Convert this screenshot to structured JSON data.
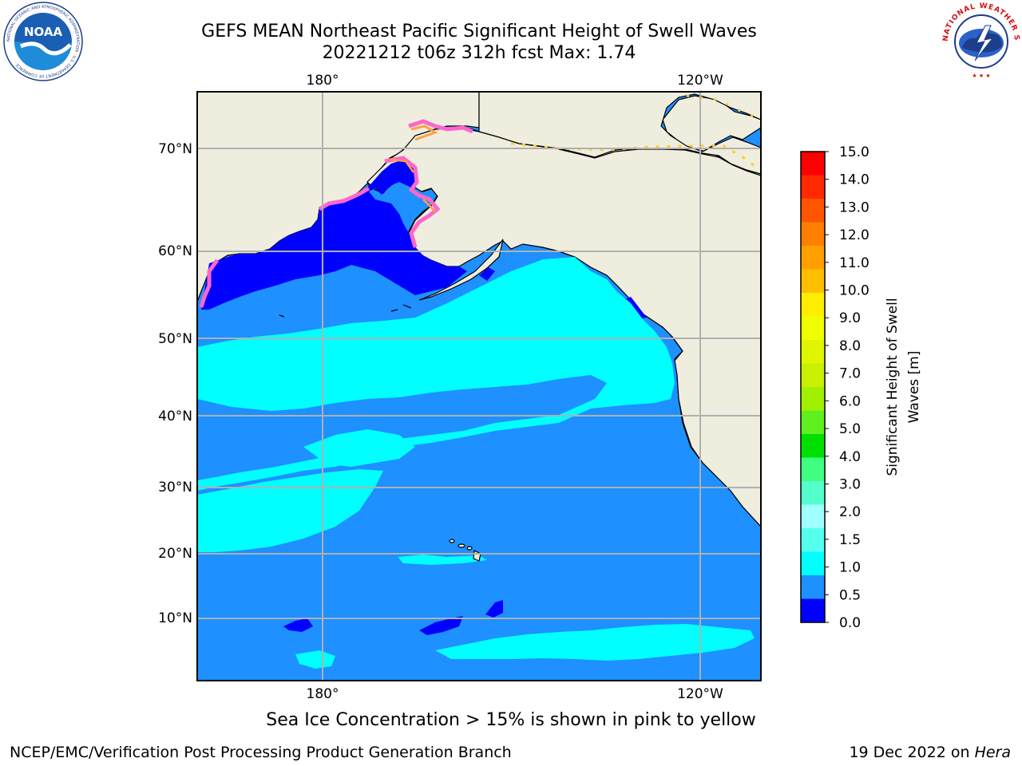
{
  "title_line1": "GEFS MEAN Northeast Pacific Significant Height of Swell Waves",
  "title_line2": "20221212 t06z 312h fcst   Max: 1.74",
  "caption": "Sea Ice Concentration > 15% is shown in pink to yellow",
  "footer_left": "NCEP/EMC/Verification Post Processing Product Generation Branch",
  "footer_right_date": "19 Dec 2022 on ",
  "footer_right_machine": "Hera",
  "logos": {
    "noaa_text": "NOAA",
    "noaa_ring": "NATIONAL OCEANIC AND ATMOSPHERIC ADMINISTRATION · U.S. DEPARTMENT OF COMMERCE ·",
    "nws_ring": "NATIONAL WEATHER SERVICE"
  },
  "map": {
    "lon_labels_top": [
      "180°",
      "120°W"
    ],
    "lon_labels_bottom": [
      "180°",
      "120°W"
    ],
    "lat_labels": [
      "70°N",
      "60°N",
      "50°N",
      "40°N",
      "30°N",
      "20°N",
      "10°N"
    ],
    "colors": {
      "land": "#efedde",
      "ocean_0_5_1_0": "#1e90ff",
      "ocean_1_0_1_5": "#00ffff",
      "ocean_1_5_2_0": "#55ffee",
      "ocean_0_0_0_5": "#0000ff",
      "grid": "#b0b0b0",
      "ice_pink": "#ff66cc",
      "ice_orange": "#ffa040",
      "ice_yellow": "#ffd030"
    }
  },
  "colorbar": {
    "label_line1": "Significant Height of Swell",
    "label_line2": "Waves [m]",
    "ticks": [
      "15.0",
      "14.0",
      "13.0",
      "12.0",
      "11.0",
      "10.0",
      "9.0",
      "8.0",
      "7.0",
      "6.0",
      "5.0",
      "4.0",
      "3.0",
      "2.0",
      "1.5",
      "1.0",
      "0.5",
      "0.0"
    ],
    "colors_top_to_bottom": [
      "#ff0000",
      "#ff2a00",
      "#ff5500",
      "#ff7f00",
      "#ffa000",
      "#ffbf00",
      "#ffee00",
      "#f0ff00",
      "#e0f500",
      "#c8f000",
      "#a0f000",
      "#60f020",
      "#00e000",
      "#40ff80",
      "#55ffcc",
      "#a0ffff",
      "#55ffee",
      "#00ffff",
      "#1e90ff",
      "#0000ff"
    ]
  }
}
